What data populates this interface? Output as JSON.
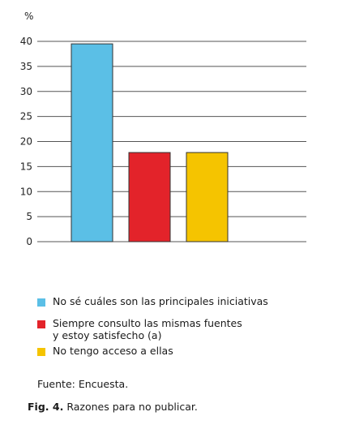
{
  "chart_data": {
    "type": "bar",
    "categories": [
      "No sé cuáles son las principales iniciativas",
      "Siempre consulto las mismas fuentes\ny estoy satisfecho (a)",
      "No tengo acceso a ellas"
    ],
    "values": [
      39.5,
      17.8,
      17.8
    ],
    "colors": [
      "#5bbfe6",
      "#e3232a",
      "#f5c400"
    ],
    "yunit": "%",
    "yticks": [
      "0",
      "5",
      "10",
      "15",
      "20",
      "25",
      "30",
      "35",
      "40"
    ],
    "ylim": [
      0,
      40
    ],
    "grid": true,
    "legend_position": "bottom"
  },
  "legend": [
    {
      "label": "No sé cuáles son las principales iniciativas",
      "color": "#5bbfe6"
    },
    {
      "label": "Siempre consulto las mismas fuentes\ny estoy satisfecho (a)",
      "color": "#e3232a"
    },
    {
      "label": "No tengo acceso a ellas",
      "color": "#f5c400"
    }
  ],
  "source": "Fuente: Encuesta.",
  "caption": {
    "label": "Fig. 4.",
    "text": "Razones para no publicar."
  }
}
